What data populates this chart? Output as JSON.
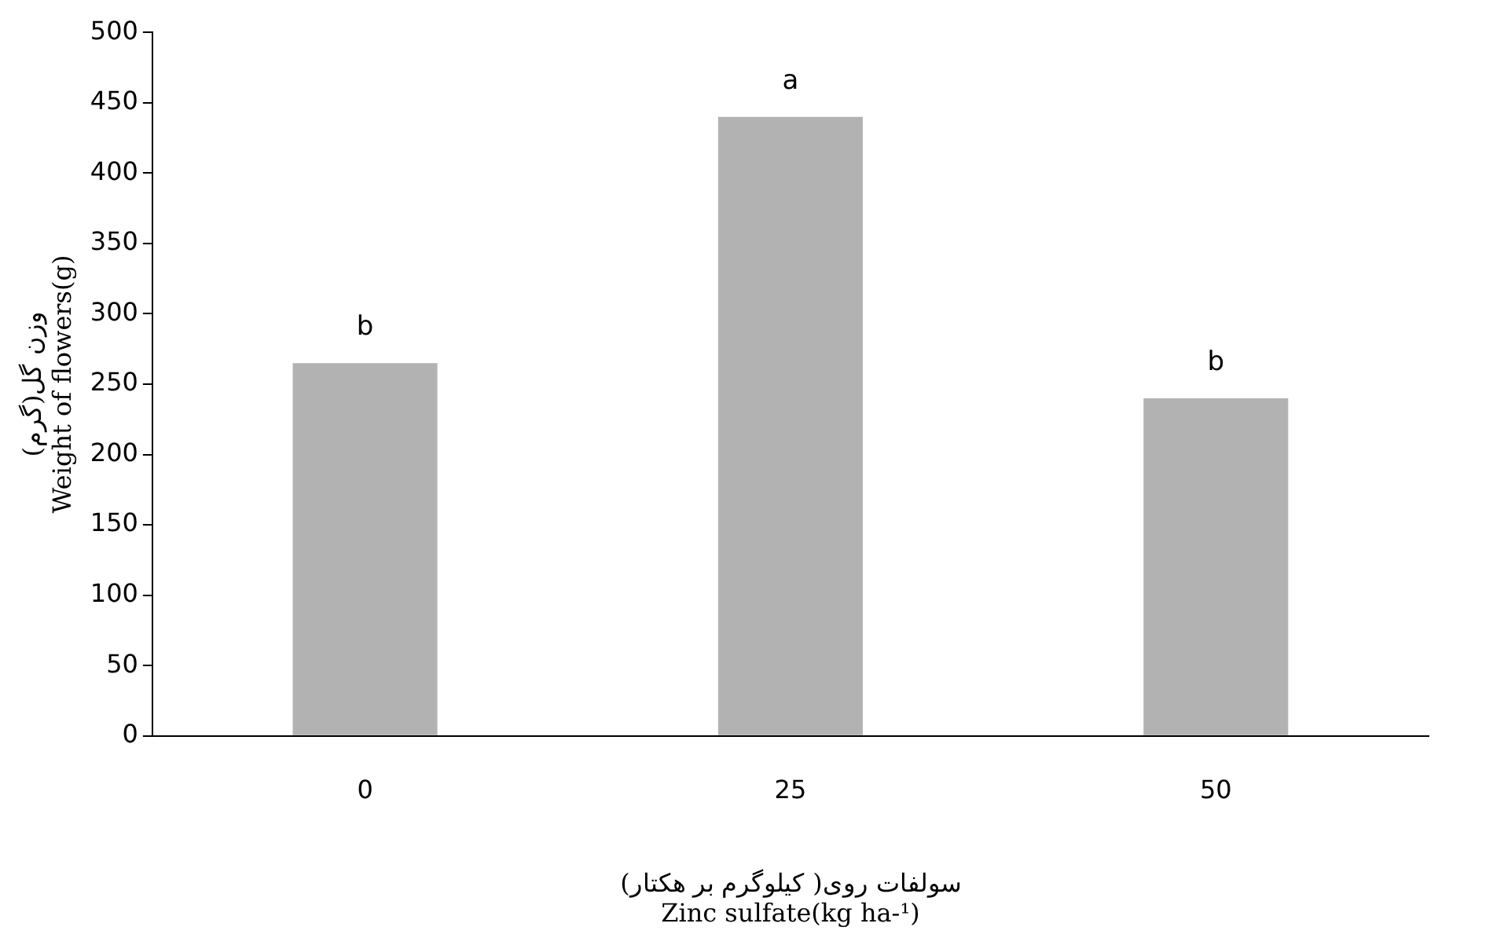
{
  "chart_data": {
    "type": "bar",
    "categories": [
      "0",
      "25",
      "50"
    ],
    "values": [
      265,
      440,
      240
    ],
    "color": "#b2b2b2",
    "ylim": [
      0,
      500
    ],
    "yticks": [
      0,
      50,
      100,
      150,
      200,
      250,
      300,
      350,
      400,
      450,
      500
    ],
    "grid": false,
    "xlabel": "سولفات روی( کیلوگرم بر هکتار)\nZinc sulfate(kg ha-¹)",
    "ylabel": "وزن گل(گرم)\nWeight of flowers(g)",
    "annotations": [
      {
        "text": "b",
        "x": "0",
        "y": 265
      },
      {
        "text": "a",
        "x": "25",
        "y": 440
      },
      {
        "text": "b",
        "x": "50",
        "y": 240
      }
    ]
  }
}
